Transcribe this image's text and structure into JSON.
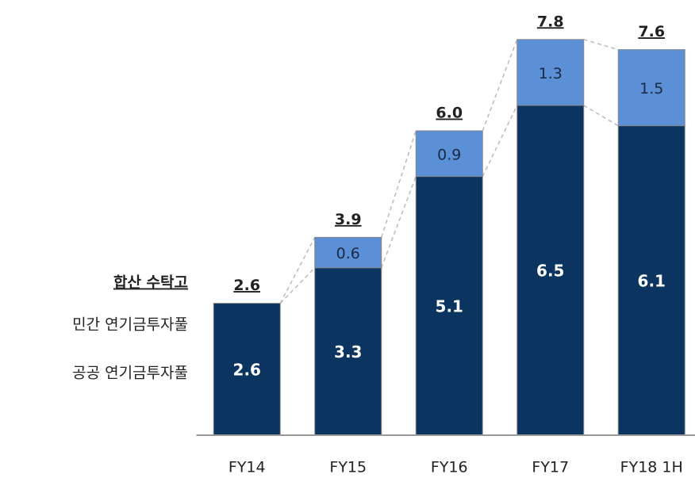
{
  "chart_data": {
    "type": "stacked_bar",
    "categories": [
      "FY14",
      "FY15",
      "FY16",
      "FY17",
      "FY18 1H"
    ],
    "series": [
      {
        "name": "공공 연기금투자풀",
        "color": "#0b3461",
        "values": [
          2.6,
          3.3,
          5.1,
          6.5,
          6.1
        ]
      },
      {
        "name": "민간 연기금투자풀",
        "color": "#5b8fd6",
        "values": [
          null,
          0.6,
          0.9,
          1.3,
          1.5
        ]
      }
    ],
    "totals": {
      "name": "합산 수탁고",
      "values": [
        2.6,
        3.9,
        6,
        7.8,
        7.6
      ],
      "value_labels": [
        "2.6",
        "3.9",
        "6.0",
        "7.8",
        "7.6"
      ]
    },
    "ylim": [
      0,
      8
    ]
  }
}
